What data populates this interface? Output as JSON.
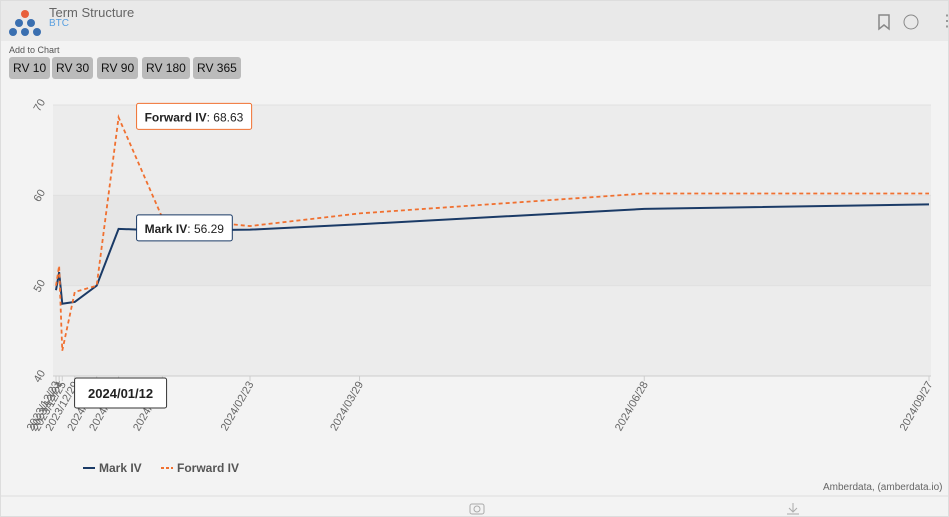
{
  "header": {
    "title": "Term Structure",
    "subtitle": "BTC"
  },
  "toolbar": {
    "label": "Add to Chart",
    "buttons": [
      "RV 10",
      "RV 30",
      "RV 90",
      "RV 180",
      "RV 365"
    ]
  },
  "chart_data": {
    "type": "line",
    "x": [
      "2023/12/23",
      "2023/12/24",
      "2023/12/25",
      "2023/12/29",
      "2024/01/05",
      "2024/01/12",
      "2024/01/26",
      "2024/02/23",
      "2024/03/29",
      "2024/06/28",
      "2024/09/27"
    ],
    "series": [
      {
        "name": "Mark IV",
        "color": "#1a3a66",
        "values": [
          49.5,
          51.5,
          48,
          48.2,
          50,
          56.29,
          56.1,
          56.2,
          56.8,
          58.5,
          59
        ]
      },
      {
        "name": "Forward IV",
        "color": "#f07030",
        "values": [
          50,
          52.2,
          42.8,
          49.3,
          50,
          68.63,
          57.5,
          56.6,
          58,
          60.2,
          60.2
        ]
      }
    ],
    "ylim": [
      40,
      70
    ],
    "yticks": [
      40,
      50,
      60,
      70
    ],
    "tooltips": [
      {
        "series": 1,
        "point": 5
      },
      {
        "series": 0,
        "point": 5
      }
    ],
    "credit": "Amberdata, (amberdata.io)"
  }
}
